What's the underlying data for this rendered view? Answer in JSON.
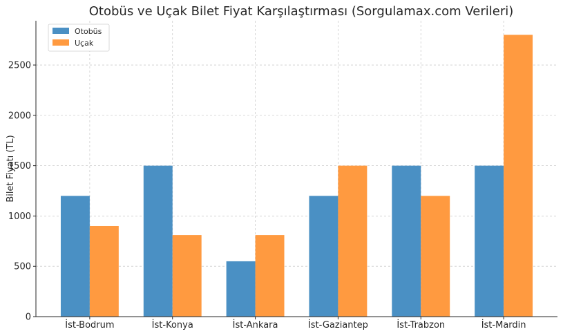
{
  "chart_data": {
    "type": "bar",
    "title": "Otobüs ve Uçak Bilet Fiyat Karşılaştırması (Sorgulamax.com Verileri)",
    "xlabel": "",
    "ylabel": "Bilet Fiyatı (TL)",
    "categories": [
      "İst-Bodrum",
      "İst-Konya",
      "İst-Ankara",
      "İst-Gaziantep",
      "İst-Trabzon",
      "İst-Mardin"
    ],
    "series": [
      {
        "name": "Otobüs",
        "color": "#4a90c4",
        "values": [
          1200,
          1500,
          550,
          1200,
          1500,
          1500
        ]
      },
      {
        "name": "Uçak",
        "color": "#ff9a40",
        "values": [
          900,
          810,
          810,
          1500,
          1200,
          2800
        ]
      }
    ],
    "ylim": [
      0,
      2940
    ],
    "yticks": [
      0,
      500,
      1000,
      1500,
      2000,
      2500
    ],
    "grid": true,
    "legend_position": "top-left"
  }
}
